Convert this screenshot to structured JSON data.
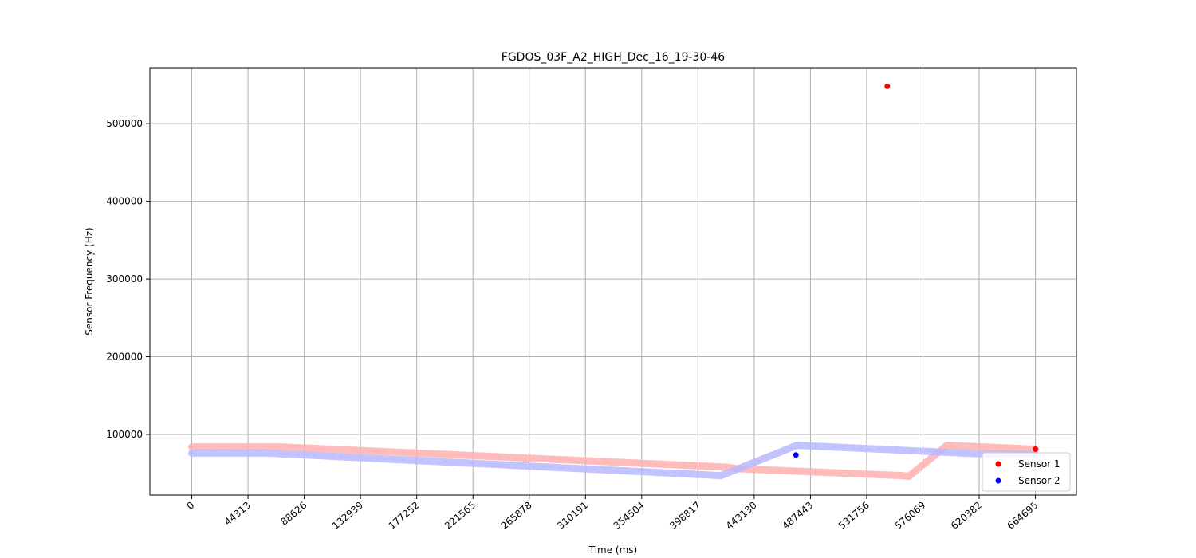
{
  "chart_data": {
    "type": "scatter",
    "title": "FGDOS_03F_A2_HIGH_Dec_16_19-30-46",
    "xlabel": "Time (ms)",
    "ylabel": "Sensor Frequency (Hz)",
    "xlim": [
      -33000,
      697000
    ],
    "ylim": [
      22000,
      572000
    ],
    "xticks": [
      0,
      44313,
      88626,
      132939,
      177252,
      221565,
      265878,
      310191,
      354504,
      398817,
      443130,
      487443,
      531756,
      576069,
      620382,
      664695
    ],
    "yticks": [
      100000,
      200000,
      300000,
      400000,
      500000
    ],
    "grid": true,
    "legend": "bottom-right",
    "series": [
      {
        "name": "Sensor 1",
        "color": "#ff0000",
        "trail_color": "#ffb0b0",
        "trail": [
          [
            0,
            84000
          ],
          [
            70000,
            84000
          ],
          [
            420000,
            58000
          ],
          [
            430000,
            56000
          ],
          [
            560000,
            47000
          ],
          [
            565000,
            46000
          ],
          [
            595000,
            86000
          ],
          [
            664695,
            81000
          ]
        ],
        "highlight_points": [
          [
            548000,
            548000
          ],
          [
            664695,
            81000
          ]
        ]
      },
      {
        "name": "Sensor 2",
        "color": "#0000ff",
        "trail_color": "#b8b8ff",
        "trail": [
          [
            0,
            76000
          ],
          [
            60000,
            76000
          ],
          [
            417000,
            47000
          ],
          [
            477000,
            86000
          ],
          [
            620000,
            75000
          ],
          [
            664695,
            74000
          ]
        ],
        "highlight_points": [
          [
            476000,
            73500
          ]
        ]
      }
    ]
  }
}
